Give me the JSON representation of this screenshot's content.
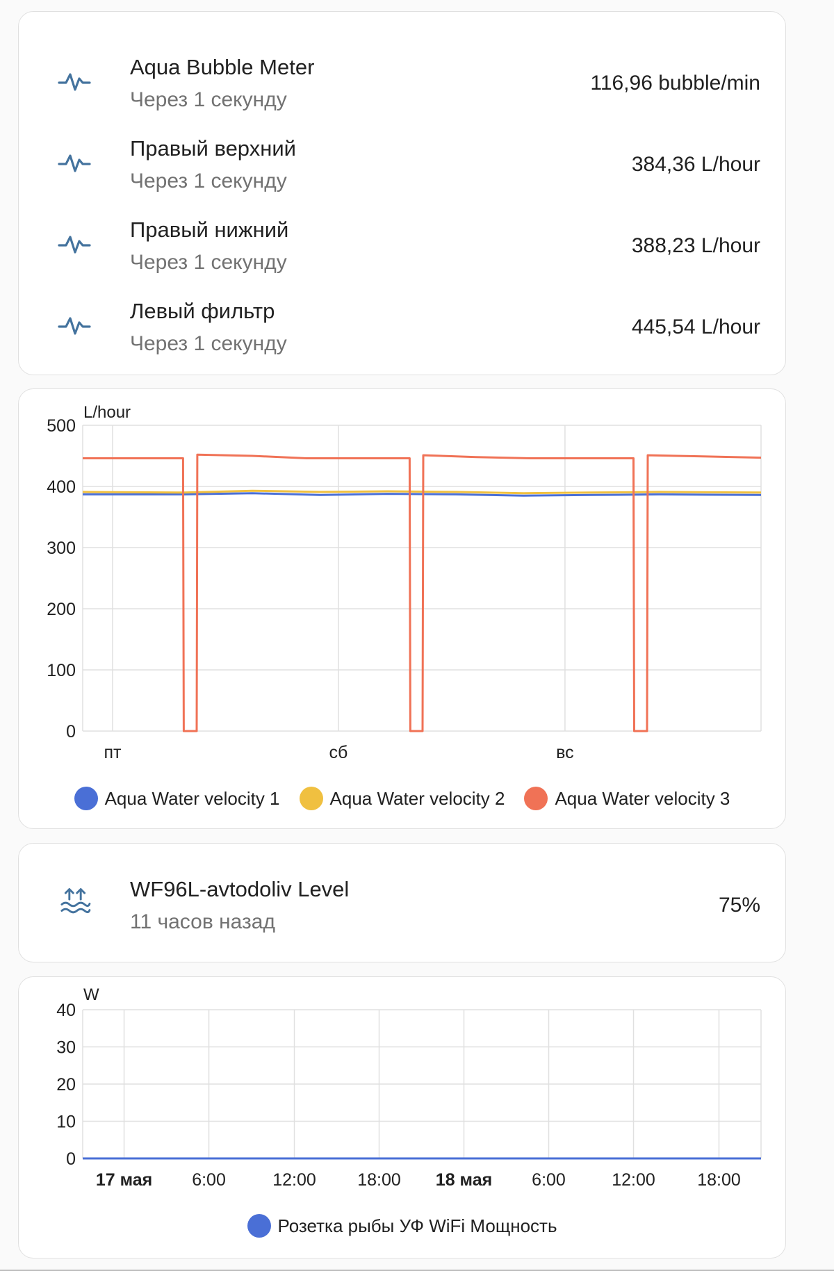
{
  "sensors": [
    {
      "name": "Aqua Bubble Meter",
      "updated": "Через 1 секунду",
      "value": "116,96 bubble/min",
      "icon": "pulse-icon"
    },
    {
      "name": "Правый верхний",
      "updated": "Через 1 секунду",
      "value": "384,36 L/hour",
      "icon": "pulse-icon"
    },
    {
      "name": "Правый нижний",
      "updated": "Через 1 секунду",
      "value": "388,23 L/hour",
      "icon": "pulse-icon"
    },
    {
      "name": "Левый фильтр",
      "updated": "Через 1 секунду",
      "value": "445,54 L/hour",
      "icon": "pulse-icon"
    }
  ],
  "level": {
    "name": "WF96L-avtodoliv Level",
    "updated": "11 часов назад",
    "value": "75%",
    "icon": "water-level-icon"
  },
  "chart_data": [
    {
      "type": "line",
      "ylabel": "L/hour",
      "ylim": [
        0,
        500
      ],
      "yticks": [
        "500",
        "400",
        "300",
        "200",
        "100",
        "0"
      ],
      "xticks": [
        "пт",
        "сб",
        "вс"
      ],
      "grid": true,
      "legend": "bottom",
      "series": [
        {
          "name": "Aqua Water velocity 1",
          "color": "#4a6fd6",
          "points": [
            [
              0,
              387
            ],
            [
              0.15,
              387
            ],
            [
              0.25,
              389
            ],
            [
              0.35,
              386
            ],
            [
              0.45,
              388
            ],
            [
              0.55,
              387
            ],
            [
              0.65,
              385
            ],
            [
              0.75,
              386
            ],
            [
              0.85,
              387
            ],
            [
              1,
              386
            ]
          ]
        },
        {
          "name": "Aqua Water velocity 2",
          "color": "#f0c040",
          "points": [
            [
              0,
              391
            ],
            [
              0.15,
              390
            ],
            [
              0.25,
              393
            ],
            [
              0.35,
              391
            ],
            [
              0.45,
              392
            ],
            [
              0.55,
              391
            ],
            [
              0.65,
              389
            ],
            [
              0.75,
              390
            ],
            [
              0.85,
              391
            ],
            [
              1,
              390
            ]
          ]
        },
        {
          "name": "Aqua Water velocity 3",
          "color": "#f07256",
          "points": [
            [
              0,
              446
            ],
            [
              0.148,
              446
            ],
            [
              0.149,
              0
            ],
            [
              0.168,
              0
            ],
            [
              0.169,
              452
            ],
            [
              0.25,
              450
            ],
            [
              0.33,
              446
            ],
            [
              0.482,
              446
            ],
            [
              0.483,
              0
            ],
            [
              0.501,
              0
            ],
            [
              0.502,
              451
            ],
            [
              0.58,
              448
            ],
            [
              0.66,
              446
            ],
            [
              0.812,
              446
            ],
            [
              0.813,
              0
            ],
            [
              0.832,
              0
            ],
            [
              0.833,
              451
            ],
            [
              0.92,
              449
            ],
            [
              1,
              447
            ]
          ]
        }
      ]
    },
    {
      "type": "line",
      "ylabel": "W",
      "ylim": [
        0,
        40
      ],
      "yticks": [
        "40",
        "30",
        "20",
        "10",
        "0"
      ],
      "xticks": [
        "17 мая",
        "6:00",
        "12:00",
        "18:00",
        "18 мая",
        "6:00",
        "12:00",
        "18:00"
      ],
      "bold_xticks": [
        0,
        4
      ],
      "grid": true,
      "legend": "bottom",
      "series": [
        {
          "name": "Розетка рыбы УФ WiFi Мощность",
          "color": "#4a6fd6",
          "points": [
            [
              0,
              0
            ],
            [
              1,
              0
            ]
          ]
        }
      ]
    }
  ]
}
